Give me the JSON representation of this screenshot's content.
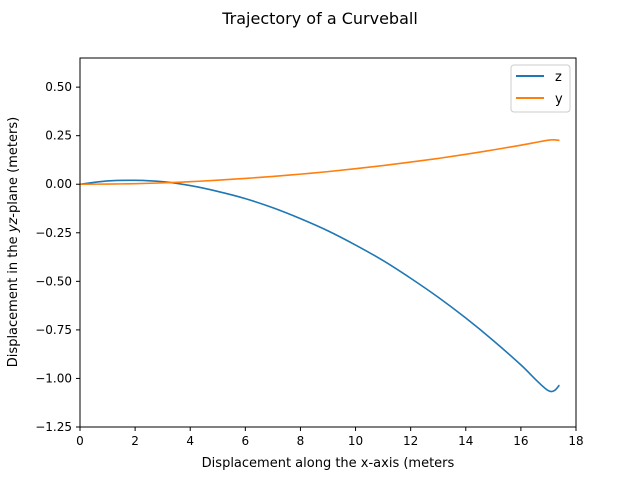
{
  "chart_data": {
    "type": "line",
    "title": "Trajectory of a Curveball",
    "xlabel": "Displacement along the x-axis (meters",
    "ylabel_parts": [
      "Displacement in the ",
      "yz",
      "-plane (meters)"
    ],
    "xlim": [
      0,
      18
    ],
    "ylim": [
      -1.25,
      0.65
    ],
    "xticks": [
      0,
      2,
      4,
      6,
      8,
      10,
      12,
      14,
      16,
      18
    ],
    "yticks": [
      -1.25,
      -1.0,
      -0.75,
      -0.5,
      -0.25,
      0.0,
      0.25,
      0.5
    ],
    "ytick_labels": [
      "−1.25",
      "−1.00",
      "−0.75",
      "−0.50",
      "−0.25",
      "0.00",
      "0.25",
      "0.50"
    ],
    "legend_position": "top-right",
    "series": [
      {
        "name": "z",
        "color": "#1f77b4",
        "x": [
          0,
          1,
          2,
          3,
          4,
          5,
          6,
          7,
          8,
          9,
          10,
          11,
          12,
          13,
          14,
          15,
          16,
          17,
          17.4
        ],
        "y": [
          0,
          0.017,
          0.02,
          0.013,
          -0.007,
          -0.037,
          -0.074,
          -0.121,
          -0.177,
          -0.24,
          -0.313,
          -0.393,
          -0.484,
          -0.582,
          -0.689,
          -0.805,
          -0.93,
          -1.063,
          -1.035
        ]
      },
      {
        "name": "y",
        "color": "#ff7f0e",
        "x": [
          0,
          1,
          2,
          3,
          4,
          5,
          6,
          7,
          8,
          9,
          10,
          11,
          12,
          13,
          14,
          15,
          16,
          17,
          17.4
        ],
        "y": [
          0,
          0.001,
          0.003,
          0.007,
          0.013,
          0.021,
          0.03,
          0.04,
          0.052,
          0.065,
          0.08,
          0.096,
          0.114,
          0.133,
          0.154,
          0.177,
          0.201,
          0.227,
          0.226
        ]
      }
    ]
  }
}
